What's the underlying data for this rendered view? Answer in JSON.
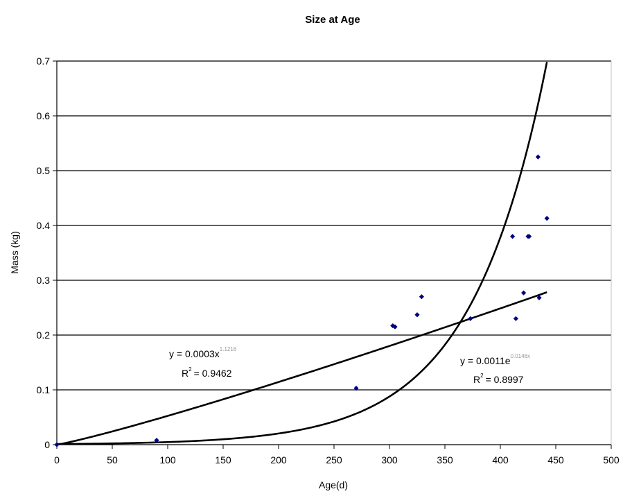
{
  "chart_data": {
    "type": "scatter",
    "title": "Size at Age",
    "xlabel": "Age(d)",
    "ylabel": "Mass (kg)",
    "xlim": [
      0,
      500
    ],
    "ylim": [
      0,
      0.7
    ],
    "xticks": [
      0,
      50,
      100,
      150,
      200,
      250,
      300,
      350,
      400,
      450,
      500
    ],
    "yticks": [
      0,
      0.1,
      0.2,
      0.3,
      0.4,
      0.5,
      0.6,
      0.7
    ],
    "xtick_labels": [
      "0",
      "50",
      "100",
      "150",
      "200",
      "250",
      "300",
      "350",
      "400",
      "450",
      "500"
    ],
    "ytick_labels": [
      "0",
      "0.1",
      "0.2",
      "0.3",
      "0.4",
      "0.5",
      "0.6",
      "0.7"
    ],
    "grid": "horizontal",
    "marker_color": "#000080",
    "points": [
      {
        "x": 0,
        "y": 0
      },
      {
        "x": 90,
        "y": 0.008
      },
      {
        "x": 270,
        "y": 0.103
      },
      {
        "x": 303,
        "y": 0.217
      },
      {
        "x": 305,
        "y": 0.215
      },
      {
        "x": 325,
        "y": 0.237
      },
      {
        "x": 329,
        "y": 0.27
      },
      {
        "x": 373,
        "y": 0.23
      },
      {
        "x": 411,
        "y": 0.38
      },
      {
        "x": 414,
        "y": 0.23
      },
      {
        "x": 421,
        "y": 0.277
      },
      {
        "x": 425,
        "y": 0.38
      },
      {
        "x": 426,
        "y": 0.38
      },
      {
        "x": 434,
        "y": 0.525
      },
      {
        "x": 435,
        "y": 0.268
      },
      {
        "x": 442,
        "y": 0.413
      }
    ],
    "trendlines": [
      {
        "model": "power",
        "a": 0.0003,
        "b": 1.1216,
        "x_range": [
          0,
          442
        ],
        "equation_prefix": "y = 0.0003x",
        "equation_exponent": "1.1216",
        "r2_value": "= 0.9462"
      },
      {
        "model": "exponential",
        "a": 0.0011,
        "b": 0.0146,
        "x_range": [
          0,
          442
        ],
        "equation_prefix": "y = 0.0011e",
        "equation_exponent": "0.0146x",
        "r2_value": "= 0.8997"
      }
    ]
  }
}
